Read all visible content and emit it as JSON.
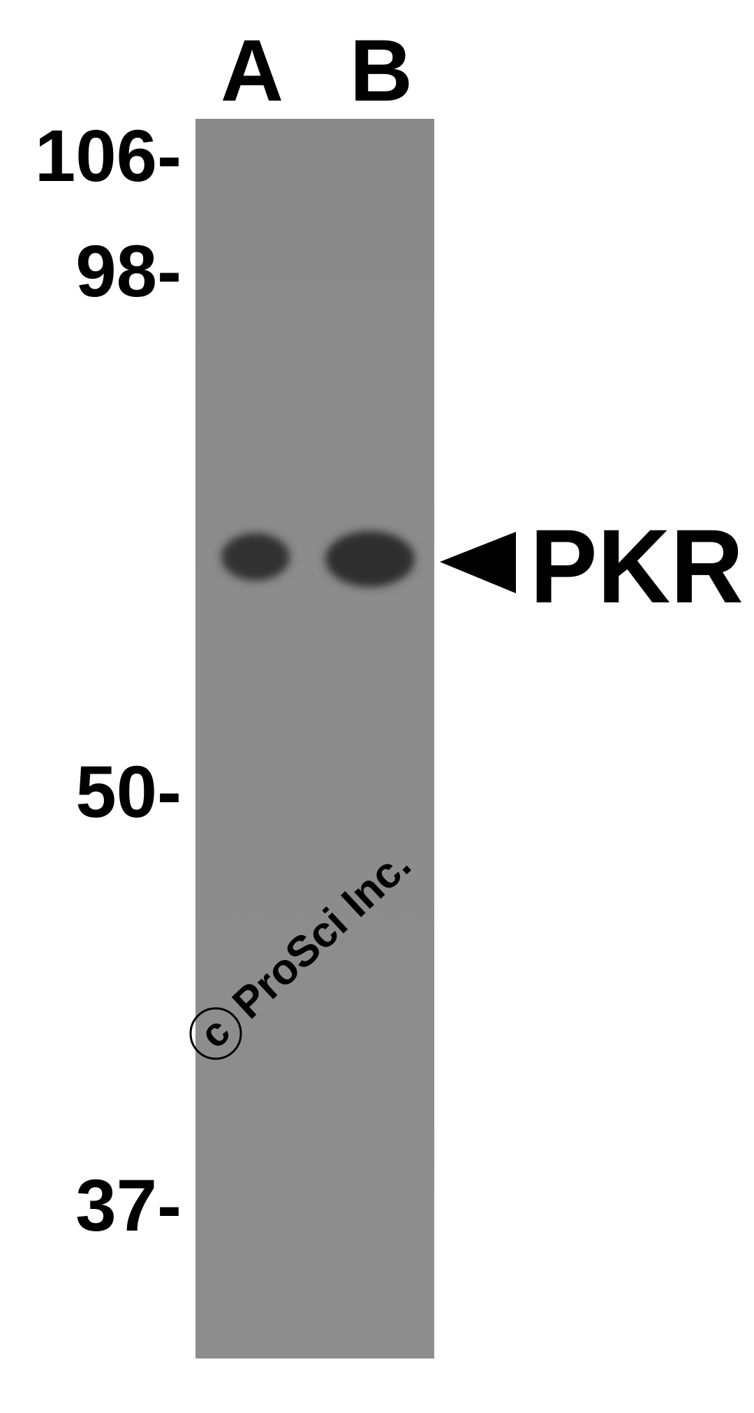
{
  "lanes": [
    "A",
    "B"
  ],
  "markers": [
    "106-",
    "98-",
    "50-",
    "37-"
  ],
  "band_label": "PKR",
  "watermark": {
    "symbol": "c",
    "text": "ProSci Inc."
  }
}
